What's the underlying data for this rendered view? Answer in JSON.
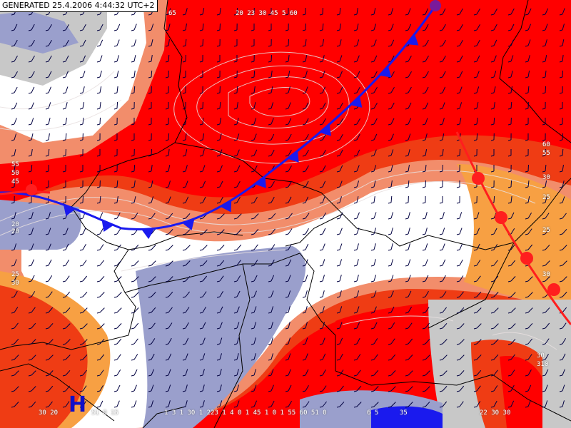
{
  "header": {
    "generated": "GENERATED 25.4.2006 4:44:32 UTC+2"
  },
  "pressure_center": {
    "label": "H"
  },
  "colors": {
    "hot": "#ff0000",
    "warm": "#ef3c14",
    "mild": "#f28d6b",
    "orange": "#f7a043",
    "white": "#ffffff",
    "cool": "#9a9fcc",
    "grey": "#c8c8c8",
    "front_cold": "#1a1aee",
    "front_warm": "#ff1e1e",
    "border": "#000000"
  },
  "contour_labels": {
    "top_center": "20 23 30 45 5 60",
    "top_a": "65",
    "bottom_a": "30 20",
    "bottom_b": "51 0 15",
    "bottom_c": "1 3 1 30 1 223 1 4 0 1 45 1 0 1 55 60 51 0",
    "bottom_d": "6 5",
    "bottom_e": "35",
    "bottom_f": "22 30 30",
    "left_1": "55",
    "left_2": "50",
    "left_3": "45",
    "left_4": "20",
    "left_5": "20",
    "left_6": "25",
    "left_7": "30",
    "right_1": "60",
    "right_2": "55",
    "right_3": "30",
    "right_4": "25",
    "right_5": "25",
    "right_6": "30",
    "right_7": "30",
    "right_8": "310"
  }
}
